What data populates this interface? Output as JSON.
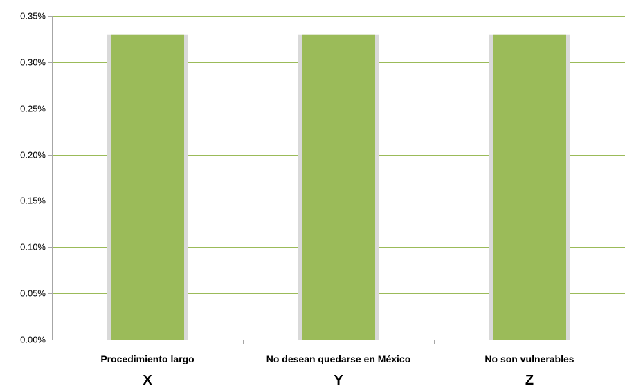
{
  "chart_data": {
    "type": "bar",
    "categories": [
      "Procedimiento largo",
      "No desean quedarse en México",
      "No son vulnerables"
    ],
    "category_letters": [
      "X",
      "Y",
      "Z"
    ],
    "values": [
      0.33,
      0.33,
      0.33
    ],
    "value_unit": "%",
    "title": "",
    "xlabel": "",
    "ylabel": "",
    "ylim": [
      0,
      0.35
    ],
    "yticks": [
      "0.00%",
      "0.05%",
      "0.10%",
      "0.15%",
      "0.20%",
      "0.25%",
      "0.30%",
      "0.35%"
    ],
    "grid": true,
    "legend": "none",
    "colors": {
      "bar": "#9bbb59",
      "grid": "#9bbb59",
      "axis": "#a6a6a6",
      "bar_edge": "#d9d9d9"
    }
  }
}
